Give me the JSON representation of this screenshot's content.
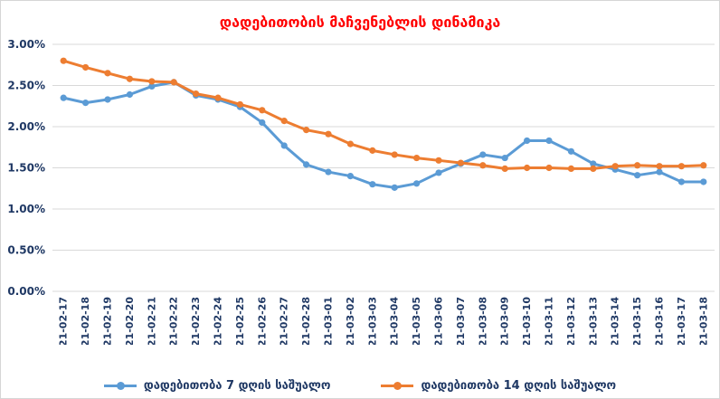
{
  "chart_data": {
    "type": "line",
    "title": "დადებითობის მაჩვენებლის დინამიკა",
    "title_color": "#ff0000",
    "xlabel": "",
    "ylabel": "",
    "ylim": [
      0,
      3
    ],
    "grid": true,
    "gridline_color": "#d9d9d9",
    "axis_label_color": "#1f3864",
    "legend_position": "bottom",
    "yticks": [
      {
        "value": 0.0,
        "label": "0.00%"
      },
      {
        "value": 0.5,
        "label": "0.50%"
      },
      {
        "value": 1.0,
        "label": "1.00%"
      },
      {
        "value": 1.5,
        "label": "1.50%"
      },
      {
        "value": 2.0,
        "label": "2.00%"
      },
      {
        "value": 2.5,
        "label": "2.50%"
      },
      {
        "value": 3.0,
        "label": "3.00%"
      }
    ],
    "categories": [
      "2021-02-17",
      "2021-02-18",
      "2021-02-19",
      "2021-02-20",
      "2021-02-21",
      "2021-02-22",
      "2021-02-23",
      "2021-02-24",
      "2021-02-25",
      "2021-02-26",
      "2021-02-27",
      "2021-02-28",
      "2021-03-01",
      "2021-03-02",
      "2021-03-03",
      "2021-03-04",
      "2021-03-05",
      "2021-03-06",
      "2021-03-07",
      "2021-03-08",
      "2021-03-09",
      "2021-03-10",
      "2021-03-11",
      "2021-03-12",
      "2021-03-13",
      "2021-03-14",
      "2021-03-15",
      "2021-03-16",
      "2021-03-17",
      "2021-03-18"
    ],
    "series": [
      {
        "name": "დადებითობა 7 დღის საშუალო",
        "color": "#5b9bd5",
        "values": [
          2.35,
          2.29,
          2.33,
          2.39,
          2.49,
          2.54,
          2.38,
          2.33,
          2.24,
          2.05,
          1.77,
          1.54,
          1.45,
          1.4,
          1.3,
          1.26,
          1.31,
          1.44,
          1.55,
          1.66,
          1.62,
          1.83,
          1.83,
          1.7,
          1.55,
          1.48,
          1.41,
          1.45,
          1.33,
          1.33
        ]
      },
      {
        "name": "დადებითობა 14 დღის საშუალო",
        "color": "#ed7d31",
        "values": [
          2.8,
          2.72,
          2.65,
          2.58,
          2.55,
          2.54,
          2.4,
          2.35,
          2.27,
          2.2,
          2.07,
          1.96,
          1.91,
          1.79,
          1.71,
          1.66,
          1.62,
          1.59,
          1.56,
          1.53,
          1.49,
          1.5,
          1.5,
          1.49,
          1.49,
          1.52,
          1.53,
          1.52,
          1.52,
          1.53
        ]
      }
    ]
  }
}
